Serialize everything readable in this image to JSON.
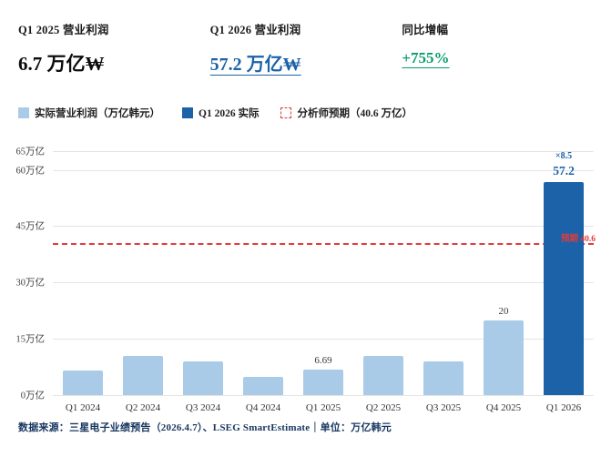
{
  "kpis": [
    {
      "label": "Q1 2025 营业利润",
      "value": "6.7 万亿₩",
      "color": "#0d0d0d"
    },
    {
      "label": "Q1 2026 营业利润",
      "value": "57.2 万亿₩",
      "color": "#1b62a8"
    },
    {
      "label": "同比增幅",
      "value": "+755%",
      "color": "#0a9d6e"
    }
  ],
  "legend": [
    {
      "label": "实际营业利润（万亿韩元）",
      "swatch": "light-blue-square",
      "color": "#a9cbe8"
    },
    {
      "label": "Q1 2026 实际",
      "swatch": "dark-blue-square",
      "color": "#1b62a8"
    },
    {
      "label": "分析师预期（40.6 万亿）",
      "swatch": "red-dashed-square",
      "color": "#e23b3b"
    }
  ],
  "chart_data": {
    "type": "bar",
    "title": "",
    "categories": [
      "Q1 2024",
      "Q2 2024",
      "Q3 2024",
      "Q4 2024",
      "Q1 2025",
      "Q2 2025",
      "Q3 2025",
      "Q4 2025",
      "Q1 2026"
    ],
    "values": [
      6.6,
      10.4,
      9.1,
      4.8,
      6.69,
      10.5,
      9.0,
      20,
      57.2
    ],
    "bar_labels": [
      "",
      "",
      "",
      "",
      "6.69",
      "",
      "",
      "20",
      "57.2"
    ],
    "highlight_index": 8,
    "multiplier_label": "×8.5",
    "bar_color": "#a9cbe8",
    "highlight_color": "#1b62a8",
    "y_ticks": [
      0,
      15,
      30,
      45,
      60,
      65
    ],
    "y_tick_suffix": "万亿",
    "ylim": [
      0,
      65
    ],
    "grid": true,
    "legend_position": "top",
    "xlabel": "",
    "ylabel": "",
    "reference_line": {
      "value": 40.6,
      "label": "预期 40.6",
      "color": "#e23b3b"
    }
  },
  "footer": {
    "text": "数据来源：三星电子业绩预告（2026.4.7）、LSEG SmartEstimate｜单位：万亿韩元"
  }
}
